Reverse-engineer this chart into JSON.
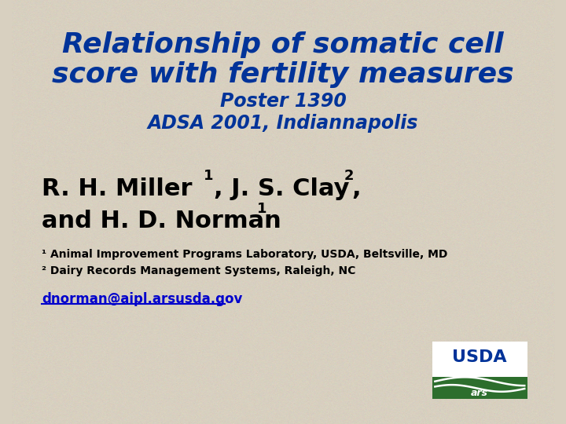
{
  "bg_color": "#d8d0c0",
  "title_line1": "Relationship of somatic cell",
  "title_line2": "score with fertility measures",
  "subtitle_line1": "Poster 1390",
  "subtitle_line2": "ADSA 2001, Indiannapolis",
  "title_color": "#003399",
  "subtitle_color": "#003399",
  "author_color": "#000000",
  "affil1": "¹ Animal Improvement Programs Laboratory, USDA, Beltsville, MD",
  "affil2": "² Dairy Records Management Systems, Raleigh, NC",
  "affil_color": "#000000",
  "email": "dnorman@aipl.arsusda.gov",
  "email_color": "#0000cc",
  "usda_text_color": "#003399",
  "usda_green": "#2d6e2d"
}
